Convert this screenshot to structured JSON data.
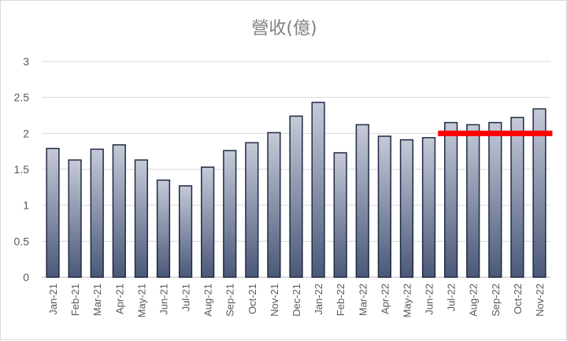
{
  "chart_data": {
    "type": "bar",
    "title": "營收(億)",
    "xlabel": "",
    "ylabel": "",
    "ylim": [
      0,
      3
    ],
    "yticks": [
      "0",
      "0.5",
      "1",
      "1.5",
      "2",
      "2.5",
      "3"
    ],
    "grid": true,
    "legend": "none",
    "categories": [
      "Jan-21",
      "Feb-21",
      "Mar-21",
      "Apr-21",
      "May-21",
      "Jun-21",
      "Jul-21",
      "Aug-21",
      "Sep-21",
      "Oct-21",
      "Nov-21",
      "Dec-21",
      "Jan-22",
      "Feb-22",
      "Mar-22",
      "Apr-22",
      "May-22",
      "Jun-22",
      "Jul-22",
      "Aug-22",
      "Sep-22",
      "Oct-22",
      "Nov-22"
    ],
    "values": [
      1.79,
      1.63,
      1.78,
      1.84,
      1.63,
      1.35,
      1.27,
      1.53,
      1.76,
      1.87,
      2.01,
      2.24,
      2.43,
      1.73,
      2.12,
      1.96,
      1.91,
      1.94,
      2.15,
      2.12,
      2.15,
      2.22,
      2.34
    ],
    "reference_line": {
      "value": 2.0,
      "from": "Jul-22",
      "to": "Nov-22",
      "color": "#ff0000"
    },
    "colors": {
      "bar_top": "#c5cad8",
      "bar_bottom": "#4a5878",
      "bar_stroke": "#1f2a44",
      "grid": "#d9d9d9",
      "axis": "#bfbfbf"
    }
  }
}
